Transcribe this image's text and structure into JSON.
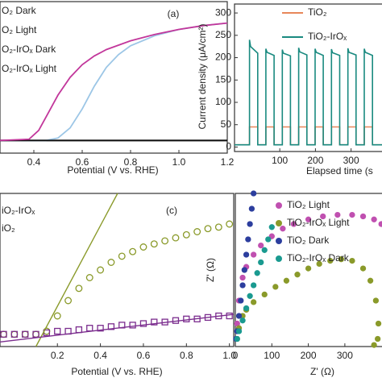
{
  "chart_data": [
    {
      "type": "line",
      "label": "(a)",
      "xlabel": "Potential (V vs. RHE)",
      "xlim": [
        0.26,
        1.2
      ],
      "ylim": [
        -0.1,
        1.1
      ],
      "xticks": [
        0.4,
        0.6,
        0.8,
        {
          "value": 1,
          "label": "1.0"
        },
        1.2
      ],
      "series": [
        {
          "name": "O₂ Dark",
          "color": "#111111",
          "x": [
            0.26,
            1.2
          ],
          "values": [
            0,
            0
          ]
        },
        {
          "name": "O₂ Light",
          "color": "#9cc6e6",
          "x": [
            0.26,
            0.45,
            0.5,
            0.55,
            0.6,
            0.65,
            0.7,
            0.75,
            0.8,
            0.9,
            1.0,
            1.1,
            1.2
          ],
          "values": [
            0,
            0,
            0.02,
            0.1,
            0.25,
            0.43,
            0.58,
            0.68,
            0.75,
            0.83,
            0.88,
            0.91,
            0.93
          ]
        },
        {
          "name": "O₂-IrOₓ Dark",
          "color": "#111111",
          "x": [
            0.26,
            1.2
          ],
          "values": [
            0,
            0
          ]
        },
        {
          "name": "O₂-IrOₓ Light",
          "color": "#c2379b",
          "x": [
            0.26,
            0.38,
            0.42,
            0.46,
            0.5,
            0.55,
            0.6,
            0.65,
            0.7,
            0.8,
            0.9,
            1.0,
            1.1,
            1.2
          ],
          "values": [
            0,
            0.01,
            0.08,
            0.22,
            0.36,
            0.5,
            0.6,
            0.67,
            0.72,
            0.79,
            0.84,
            0.88,
            0.91,
            0.93
          ]
        }
      ]
    },
    {
      "type": "line",
      "xlabel": "Elapsed time (s",
      "ylabel": "Current density (μA/cm²)",
      "xlim": [
        -27,
        389
      ],
      "ylim": [
        -10,
        320
      ],
      "xticks": [
        100,
        200,
        300
      ],
      "yticks": [
        0,
        50,
        100,
        150,
        200,
        250,
        300
      ],
      "x": [
        -27,
        15,
        15,
        18,
        38,
        38,
        61,
        61,
        64,
        84,
        84,
        107,
        107,
        110,
        130,
        130,
        153,
        153,
        156,
        176,
        176,
        199,
        199,
        202,
        222,
        222,
        245,
        245,
        248,
        268,
        268,
        291,
        291,
        294,
        314,
        314,
        337,
        337,
        340,
        360,
        360,
        389
      ],
      "series": [
        {
          "name": "TiO₂",
          "color": "#e8875a",
          "values": [
            5,
            5,
            45,
            45,
            45,
            5,
            5,
            45,
            45,
            45,
            5,
            5,
            45,
            45,
            45,
            5,
            5,
            45,
            45,
            45,
            5,
            5,
            45,
            45,
            45,
            5,
            5,
            45,
            45,
            45,
            5,
            5,
            45,
            45,
            45,
            5,
            5,
            45,
            45,
            45,
            5,
            5
          ]
        },
        {
          "name": "TiO₂-IrOₓ",
          "color": "#1a8a80",
          "values": [
            5,
            5,
            240,
            225,
            210,
            5,
            5,
            220,
            212,
            205,
            5,
            5,
            218,
            210,
            204,
            5,
            5,
            222,
            213,
            206,
            5,
            5,
            220,
            212,
            205,
            5,
            5,
            219,
            211,
            205,
            5,
            5,
            221,
            212,
            206,
            5,
            5,
            220,
            212,
            205,
            5,
            5
          ]
        }
      ]
    },
    {
      "type": "scatter",
      "label": "(c)",
      "xlabel": "Potential (V vs. RHE)",
      "xlim": [
        -0.067,
        1.02
      ],
      "ylim": [
        0,
        1
      ],
      "open_markers": true,
      "xticks": [
        0.2,
        0.4,
        0.6,
        0.8,
        {
          "value": 1,
          "label": "1.0"
        }
      ],
      "series": [
        {
          "name": "iO₂-IrOₓ",
          "color": "#8a9a2a",
          "marker": "circle",
          "x": [
            -0.05,
            0,
            0.05,
            0.1,
            0.15,
            0.2,
            0.25,
            0.3,
            0.35,
            0.4,
            0.45,
            0.5,
            0.55,
            0.6,
            0.65,
            0.7,
            0.75,
            0.8,
            0.85,
            0.9,
            0.95,
            1.0
          ],
          "values": [
            0.08,
            0.08,
            0.08,
            0.08,
            0.1,
            0.2,
            0.3,
            0.38,
            0.45,
            0.5,
            0.55,
            0.59,
            0.62,
            0.65,
            0.67,
            0.69,
            0.71,
            0.73,
            0.75,
            0.77,
            0.78,
            0.8
          ]
        },
        {
          "name": "iO₂",
          "color": "#7b2d8e",
          "marker": "square",
          "x": [
            -0.05,
            0,
            0.05,
            0.1,
            0.15,
            0.2,
            0.25,
            0.3,
            0.35,
            0.4,
            0.45,
            0.5,
            0.55,
            0.6,
            0.65,
            0.7,
            0.75,
            0.8,
            0.85,
            0.9,
            0.95,
            1.0
          ],
          "values": [
            0.08,
            0.08,
            0.08,
            0.08,
            0.09,
            0.1,
            0.1,
            0.11,
            0.12,
            0.12,
            0.13,
            0.14,
            0.14,
            0.15,
            0.16,
            0.16,
            0.17,
            0.18,
            0.18,
            0.19,
            0.2,
            0.2
          ]
        },
        {
          "color": "#8a9a2a",
          "mode": "line",
          "x": [
            0.1,
            0.48
          ],
          "values": [
            0,
            1
          ]
        },
        {
          "color": "#7b2d8e",
          "mode": "line",
          "x": [
            -0.067,
            1.02
          ],
          "values": [
            0.03,
            0.21
          ]
        }
      ]
    },
    {
      "type": "scatter",
      "xlabel": "Z' (Ω)",
      "ylabel": "Z' (Ω)",
      "xlim": [
        0,
        404
      ],
      "ylim": [
        0,
        1
      ],
      "xticks": [
        0,
        100,
        200,
        300
      ],
      "series": [
        {
          "name": "TiO₂ Light",
          "color": "#c050b0",
          "marker": "circle",
          "x": [
            5,
            10,
            20,
            30,
            50,
            70,
            100,
            130,
            160,
            200,
            240,
            280,
            320,
            350,
            380,
            400
          ],
          "values": [
            0.15,
            0.3,
            0.45,
            0.52,
            0.6,
            0.66,
            0.72,
            0.77,
            0.8,
            0.83,
            0.85,
            0.86,
            0.86,
            0.85,
            0.83,
            0.8
          ]
        },
        {
          "name": "TiO₂-IrOₓ Light",
          "color": "#8a9a2a",
          "marker": "circle",
          "x": [
            5,
            10,
            20,
            30,
            50,
            80,
            110,
            140,
            170,
            200,
            230,
            260,
            290,
            320,
            350,
            370,
            385,
            392,
            390,
            380
          ],
          "values": [
            0.05,
            0.12,
            0.2,
            0.24,
            0.29,
            0.34,
            0.39,
            0.43,
            0.47,
            0.51,
            0.54,
            0.56,
            0.57,
            0.56,
            0.51,
            0.43,
            0.3,
            0.15,
            0.05,
            0.01
          ]
        },
        {
          "name": "TiO₂ Dark",
          "color": "#2c3e9e",
          "marker": "circle",
          "x": [
            2,
            5,
            10,
            15,
            20,
            25,
            30,
            35,
            40,
            45,
            50
          ],
          "values": [
            0.05,
            0.1,
            0.2,
            0.3,
            0.4,
            0.5,
            0.6,
            0.7,
            0.8,
            0.9,
            1.0
          ]
        },
        {
          "name": "TiO₂-IrOₓ Dark",
          "color": "#1a9a90",
          "marker": "circle",
          "x": [
            5,
            10,
            20,
            30,
            40,
            50,
            60,
            70,
            80,
            90,
            100
          ],
          "values": [
            0.05,
            0.1,
            0.17,
            0.25,
            0.33,
            0.4,
            0.48,
            0.55,
            0.63,
            0.7,
            0.78
          ]
        }
      ]
    }
  ]
}
